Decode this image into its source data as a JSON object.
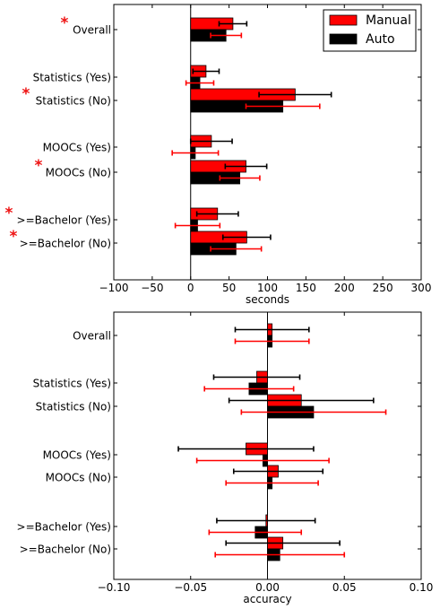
{
  "chart_data": [
    {
      "type": "bar",
      "orientation": "horizontal",
      "categories": [
        "Overall",
        "Statistics (Yes)",
        "Statistics (No)",
        "MOOCs (Yes)",
        "MOOCs (No)",
        ">=Bachelor (Yes)",
        ">=Bachelor (No)"
      ],
      "significant": [
        true,
        false,
        true,
        false,
        true,
        true,
        true
      ],
      "xlabel": "seconds",
      "xlim": [
        -100,
        300
      ],
      "xticks": [
        "−100",
        "−50",
        "0",
        "50",
        "100",
        "150",
        "200",
        "250",
        "300"
      ],
      "legend": {
        "position": "top-right",
        "entries": [
          "Manual",
          "Auto"
        ]
      },
      "series": [
        {
          "name": "Manual",
          "color": "#ff0000",
          "errcolor": "#000000",
          "values": [
            55,
            20,
            136,
            27,
            72,
            35,
            73
          ],
          "errors": [
            18,
            17,
            47,
            27,
            27,
            27,
            31
          ]
        },
        {
          "name": "Auto",
          "color": "#000000",
          "errcolor": "#ff0000",
          "values": [
            46,
            12,
            120,
            6,
            64,
            9,
            59
          ],
          "errors": [
            20,
            18,
            48,
            30,
            26,
            29,
            33
          ]
        }
      ]
    },
    {
      "type": "bar",
      "orientation": "horizontal",
      "categories": [
        "Overall",
        "Statistics (Yes)",
        "Statistics (No)",
        "MOOCs (Yes)",
        "MOOCs (No)",
        ">=Bachelor (Yes)",
        ">=Bachelor (No)"
      ],
      "xlabel": "accuracy",
      "xlim": [
        -0.1,
        0.1
      ],
      "xticks": [
        "−0.10",
        "−0.05",
        "0.00",
        "0.05",
        "0.10"
      ],
      "series": [
        {
          "name": "Manual",
          "color": "#ff0000",
          "errcolor": "#000000",
          "values": [
            0.003,
            -0.007,
            0.022,
            -0.014,
            0.007,
            -0.001,
            0.01
          ],
          "errors": [
            0.024,
            0.028,
            0.047,
            0.044,
            0.029,
            0.032,
            0.037
          ]
        },
        {
          "name": "Auto",
          "color": "#000000",
          "errcolor": "#ff0000",
          "values": [
            0.003,
            -0.012,
            0.03,
            -0.003,
            0.003,
            -0.008,
            0.008
          ],
          "errors": [
            0.024,
            0.029,
            0.047,
            0.043,
            0.03,
            0.03,
            0.042
          ]
        }
      ]
    }
  ]
}
